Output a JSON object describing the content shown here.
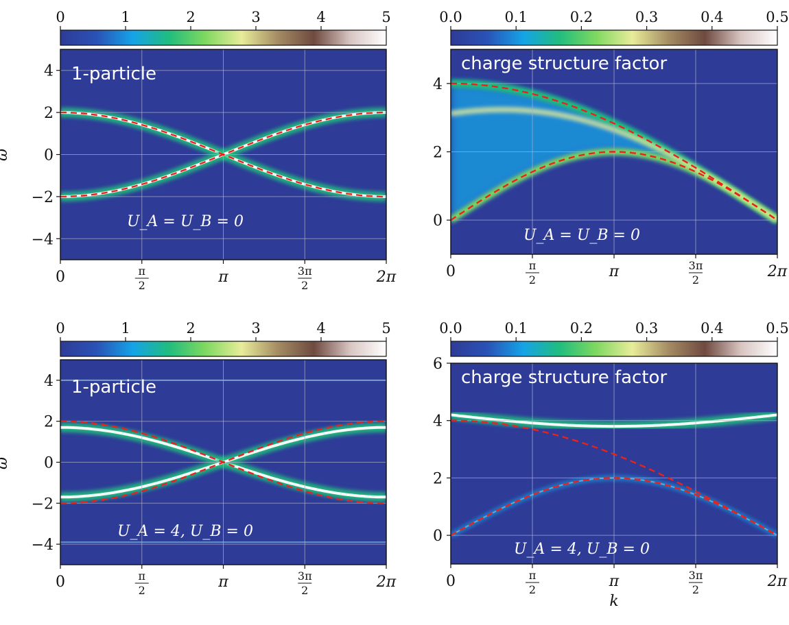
{
  "colorbar_colors": [
    "#2e3b97",
    "#2a52b6",
    "#15a3e8",
    "#20bd7e",
    "#7ed860",
    "#e8ec9a",
    "#a48c63",
    "#6f4a40",
    "#d8c5c2",
    "#ffffff"
  ],
  "dashed_curve_color": "#e8231c",
  "grid_color": "#aab0cc",
  "xlabel": "k",
  "ylabel": "ω",
  "chart_data": [
    {
      "type": "heatmap",
      "panel": "top-left",
      "label": "1-particle",
      "annotation": "U_A = U_B = 0",
      "ylabel": "ω",
      "xlabel": "",
      "xlim": [
        0,
        6.283
      ],
      "ylim": [
        -5,
        5
      ],
      "x_ticks": [
        0,
        1.5708,
        3.1416,
        4.7124,
        6.2832
      ],
      "x_tick_labels": [
        "0",
        "π/2",
        "π",
        "3π/2",
        "2π"
      ],
      "y_ticks": [
        -4,
        -2,
        0,
        2,
        4
      ],
      "y_tick_labels": [
        "−4",
        "−2",
        "0",
        "2",
        "4"
      ],
      "colorbar": {
        "range": [
          0,
          5
        ],
        "ticks": [
          0,
          1,
          2,
          3,
          4,
          5
        ],
        "tick_labels": [
          "0",
          "1",
          "2",
          "3",
          "4",
          "5"
        ]
      },
      "dashed_curves": [
        "2cos(k/2)",
        "-2cos(k/2)"
      ],
      "bands": [
        {
          "formula": "2cos(k/2)",
          "intensity": 1.0
        },
        {
          "formula": "-2cos(k/2)",
          "intensity": 1.0
        }
      ],
      "grid": true
    },
    {
      "type": "heatmap",
      "panel": "top-right",
      "label": "charge structure factor",
      "annotation": "U_A = U_B = 0",
      "ylabel": "",
      "xlabel": "",
      "xlim": [
        0,
        6.283
      ],
      "ylim": [
        -1,
        5
      ],
      "x_ticks": [
        0,
        1.5708,
        3.1416,
        4.7124,
        6.2832
      ],
      "x_tick_labels": [
        "0",
        "π/2",
        "π",
        "3π/2",
        "2π"
      ],
      "y_ticks": [
        0,
        2,
        4
      ],
      "y_tick_labels": [
        "0",
        "2",
        "4"
      ],
      "colorbar": {
        "range": [
          0,
          0.5
        ],
        "ticks": [
          0,
          0.1,
          0.2,
          0.3,
          0.4,
          0.5
        ],
        "tick_labels": [
          "0.0",
          "0.1",
          "0.2",
          "0.3",
          "0.4",
          "0.5"
        ]
      },
      "dashed_curves": [
        "4cos(k/4)",
        "2sin(k/2)"
      ],
      "continuum": {
        "lower": "2sin(k/2)",
        "upper": "4cos(k/4)"
      },
      "grid": true
    },
    {
      "type": "heatmap",
      "panel": "bottom-left",
      "label": "1-particle",
      "annotation": "U_A = 4, U_B = 0",
      "ylabel": "ω",
      "xlabel": "",
      "xlim": [
        0,
        6.283
      ],
      "ylim": [
        -5,
        5
      ],
      "x_ticks": [
        0,
        1.5708,
        3.1416,
        4.7124,
        6.2832
      ],
      "x_tick_labels": [
        "0",
        "π/2",
        "π",
        "3π/2",
        "2π"
      ],
      "y_ticks": [
        -4,
        -2,
        0,
        2,
        4
      ],
      "y_tick_labels": [
        "−4",
        "−2",
        "0",
        "2",
        "4"
      ],
      "colorbar": {
        "range": [
          0,
          5
        ],
        "ticks": [
          0,
          1,
          2,
          3,
          4,
          5
        ],
        "tick_labels": [
          "0",
          "1",
          "2",
          "3",
          "4",
          "5"
        ]
      },
      "dashed_curves": [
        "2cos(k/2)",
        "-2cos(k/2)"
      ],
      "bands": [
        {
          "formula": "1.7cos(k/2)",
          "intensity": 1.0
        },
        {
          "formula": "-1.7cos(k/2)",
          "intensity": 1.0
        },
        {
          "formula": "4.0",
          "intensity": 0.3
        },
        {
          "formula": "-3.9",
          "intensity": 0.3
        }
      ],
      "grid": true
    },
    {
      "type": "heatmap",
      "panel": "bottom-right",
      "label": "charge structure factor",
      "annotation": "U_A = 4, U_B = 0",
      "ylabel": "",
      "xlabel": "k",
      "xlim": [
        0,
        6.283
      ],
      "ylim": [
        -1,
        6
      ],
      "x_ticks": [
        0,
        1.5708,
        3.1416,
        4.7124,
        6.2832
      ],
      "x_tick_labels": [
        "0",
        "π/2",
        "π",
        "3π/2",
        "2π"
      ],
      "y_ticks": [
        0,
        2,
        4,
        6
      ],
      "y_tick_labels": [
        "0",
        "2",
        "4",
        "6"
      ],
      "colorbar": {
        "range": [
          0,
          0.5
        ],
        "ticks": [
          0,
          0.1,
          0.2,
          0.3,
          0.4,
          0.5
        ],
        "tick_labels": [
          "0.0",
          "0.1",
          "0.2",
          "0.3",
          "0.4",
          "0.5"
        ]
      },
      "dashed_curves": [
        "4cos(k/4)",
        "2sin(k/2)"
      ],
      "bands": [
        {
          "formula": "4.2 - 0.4sin(k/2)",
          "intensity": 1.0
        },
        {
          "formula": "2sin(k/2)",
          "intensity": 0.6
        }
      ],
      "grid": true
    }
  ]
}
